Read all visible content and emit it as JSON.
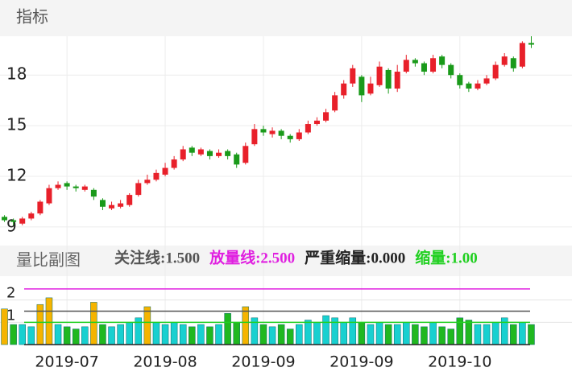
{
  "header": {
    "title": "指标"
  },
  "chart_data": [
    {
      "type": "candlestick",
      "categories": [
        null,
        null,
        null,
        null,
        null,
        null,
        null,
        "2019-07",
        null,
        null,
        null,
        null,
        null,
        null,
        null,
        null,
        null,
        null,
        "2019-08",
        null,
        null,
        null,
        null,
        null,
        null,
        null,
        null,
        null,
        null,
        "2019-09",
        null,
        null,
        null,
        null,
        null,
        null,
        null,
        null,
        null,
        null,
        "2019-09",
        null,
        null,
        null,
        null,
        null,
        null,
        null,
        null,
        null,
        null,
        "2019-10",
        null,
        null,
        null,
        null,
        null,
        null,
        null,
        null
      ],
      "open": [
        9.6,
        9.4,
        9.2,
        9.5,
        9.8,
        10.4,
        11.3,
        11.6,
        11.4,
        11.2,
        11.2,
        10.6,
        10.1,
        10.2,
        10.3,
        10.9,
        11.6,
        11.8,
        12.1,
        12.5,
        13.0,
        13.7,
        13.3,
        13.5,
        13.2,
        13.5,
        13.3,
        12.8,
        13.9,
        14.8,
        14.5,
        14.7,
        14.4,
        14.2,
        14.6,
        15.1,
        15.3,
        15.9,
        16.8,
        17.5,
        17.9,
        16.9,
        17.4,
        18.3,
        17.2,
        18.2,
        18.9,
        18.7,
        18.2,
        19.1,
        18.6,
        18.0,
        17.5,
        17.2,
        17.5,
        17.8,
        18.6,
        19.0,
        18.5,
        19.9
      ],
      "high": [
        9.7,
        9.5,
        9.6,
        9.9,
        10.6,
        11.5,
        11.7,
        11.7,
        11.5,
        11.5,
        11.3,
        10.7,
        10.5,
        10.6,
        11.0,
        11.8,
        12.1,
        12.4,
        12.8,
        13.2,
        13.8,
        13.8,
        13.7,
        13.6,
        13.6,
        13.6,
        13.4,
        14.0,
        15.1,
        15.0,
        14.9,
        14.8,
        14.5,
        14.8,
        15.3,
        15.5,
        16.0,
        17.0,
        17.7,
        18.6,
        18.0,
        17.9,
        18.8,
        18.4,
        18.6,
        19.2,
        19.0,
        18.8,
        19.2,
        19.2,
        18.7,
        18.1,
        17.6,
        17.7,
        18.0,
        18.8,
        19.3,
        19.1,
        20.0,
        20.3
      ],
      "low": [
        9.3,
        9.1,
        9.1,
        9.4,
        9.7,
        10.3,
        11.2,
        11.2,
        11.1,
        11.1,
        10.6,
        10.0,
        10.0,
        10.1,
        10.2,
        10.8,
        11.5,
        11.7,
        12.0,
        12.4,
        12.9,
        13.2,
        13.2,
        13.0,
        13.1,
        13.0,
        12.5,
        12.7,
        13.8,
        14.4,
        14.3,
        14.2,
        14.0,
        14.1,
        14.5,
        15.0,
        15.2,
        15.8,
        16.6,
        17.3,
        16.4,
        16.8,
        17.3,
        16.9,
        17.0,
        18.1,
        18.5,
        18.0,
        18.1,
        18.4,
        17.8,
        17.2,
        17.0,
        17.1,
        17.4,
        17.7,
        18.5,
        18.2,
        18.4,
        19.6
      ],
      "close": [
        9.4,
        9.3,
        9.5,
        9.8,
        10.5,
        11.3,
        11.5,
        11.4,
        11.3,
        11.4,
        10.8,
        10.2,
        10.3,
        10.4,
        10.9,
        11.6,
        11.8,
        12.2,
        12.5,
        13.0,
        13.6,
        13.4,
        13.6,
        13.2,
        13.4,
        13.2,
        12.7,
        13.8,
        14.8,
        14.6,
        14.7,
        14.4,
        14.2,
        14.6,
        15.1,
        15.3,
        15.8,
        16.8,
        17.5,
        18.4,
        16.8,
        17.5,
        18.5,
        17.2,
        18.2,
        18.9,
        18.7,
        18.2,
        19.0,
        18.6,
        18.0,
        17.4,
        17.2,
        17.5,
        17.8,
        18.6,
        19.1,
        18.4,
        19.9,
        19.8
      ],
      "ylim": [
        7.9,
        20.3
      ],
      "yticks": [
        9,
        12,
        15,
        18
      ],
      "grid": true,
      "up_color": "#e8202a",
      "down_color": "#1a9a1a"
    },
    {
      "type": "bar",
      "title": "量比副图",
      "values": [
        1.6,
        0.9,
        0.9,
        0.8,
        1.8,
        2.1,
        0.9,
        0.8,
        0.7,
        0.8,
        1.9,
        0.9,
        0.8,
        0.9,
        1.0,
        1.2,
        1.7,
        1.0,
        0.9,
        1.0,
        0.9,
        0.8,
        0.9,
        0.8,
        0.9,
        1.4,
        1.0,
        1.7,
        1.2,
        0.9,
        0.8,
        0.9,
        0.7,
        0.9,
        1.1,
        1.0,
        1.3,
        1.2,
        1.0,
        1.2,
        1.0,
        0.9,
        1.0,
        0.9,
        0.9,
        1.0,
        0.9,
        0.8,
        1.0,
        0.8,
        0.7,
        1.2,
        1.1,
        0.9,
        0.9,
        1.0,
        1.2,
        0.9,
        1.0,
        0.9
      ],
      "ylim": [
        0,
        3
      ],
      "yticks": [
        1,
        2
      ],
      "up_color": "#18d0d0",
      "down_color": "#20b820",
      "highlight_color": "#f5b400",
      "reference_lines": [
        {
          "value": 1.5,
          "label": "关注线:1.500",
          "color": "#555555"
        },
        {
          "value": 2.5,
          "label": "放量线:2.500",
          "color": "#e020e0"
        },
        {
          "value": 0,
          "label": "严重缩量:0.000",
          "color": "#222222"
        },
        {
          "value": 1.0,
          "label": "缩量:1.00",
          "color": "#20d020"
        }
      ]
    }
  ]
}
